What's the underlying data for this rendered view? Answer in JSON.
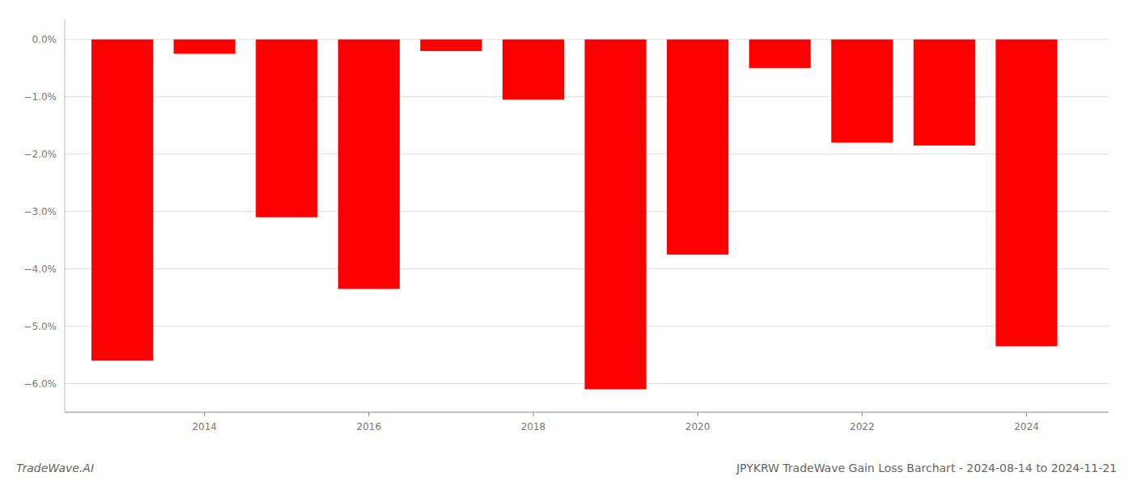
{
  "chart_data": {
    "type": "bar",
    "title": "JPYKRW TradeWave Gain Loss Barchart - 2024-08-14 to 2024-11-21",
    "annotations": [
      "TradeWave.AI"
    ],
    "x": [
      2013,
      2014,
      2015,
      2016,
      2017,
      2018,
      2019,
      2020,
      2021,
      2022,
      2023,
      2024
    ],
    "values": [
      -5.6,
      -0.25,
      -3.1,
      -4.35,
      -0.2,
      -1.05,
      -6.1,
      -3.75,
      -0.5,
      -1.8,
      -1.85,
      -5.35
    ],
    "color": "#ff0000",
    "xlim": [
      2012.3,
      2025.0
    ],
    "xticks": [
      2014,
      2016,
      2018,
      2020,
      2022,
      2024
    ],
    "ylim": [
      -6.5,
      0.35
    ],
    "yticks": [
      {
        "value": 0.0,
        "label": "0.0%"
      },
      {
        "value": -1.0,
        "label": "−1.0%"
      },
      {
        "value": -2.0,
        "label": "−2.0%"
      },
      {
        "value": -3.0,
        "label": "−3.0%"
      },
      {
        "value": -4.0,
        "label": "−4.0%"
      },
      {
        "value": -5.0,
        "label": "−5.0%"
      },
      {
        "value": -6.0,
        "label": "−6.0%"
      }
    ],
    "grid": true
  }
}
